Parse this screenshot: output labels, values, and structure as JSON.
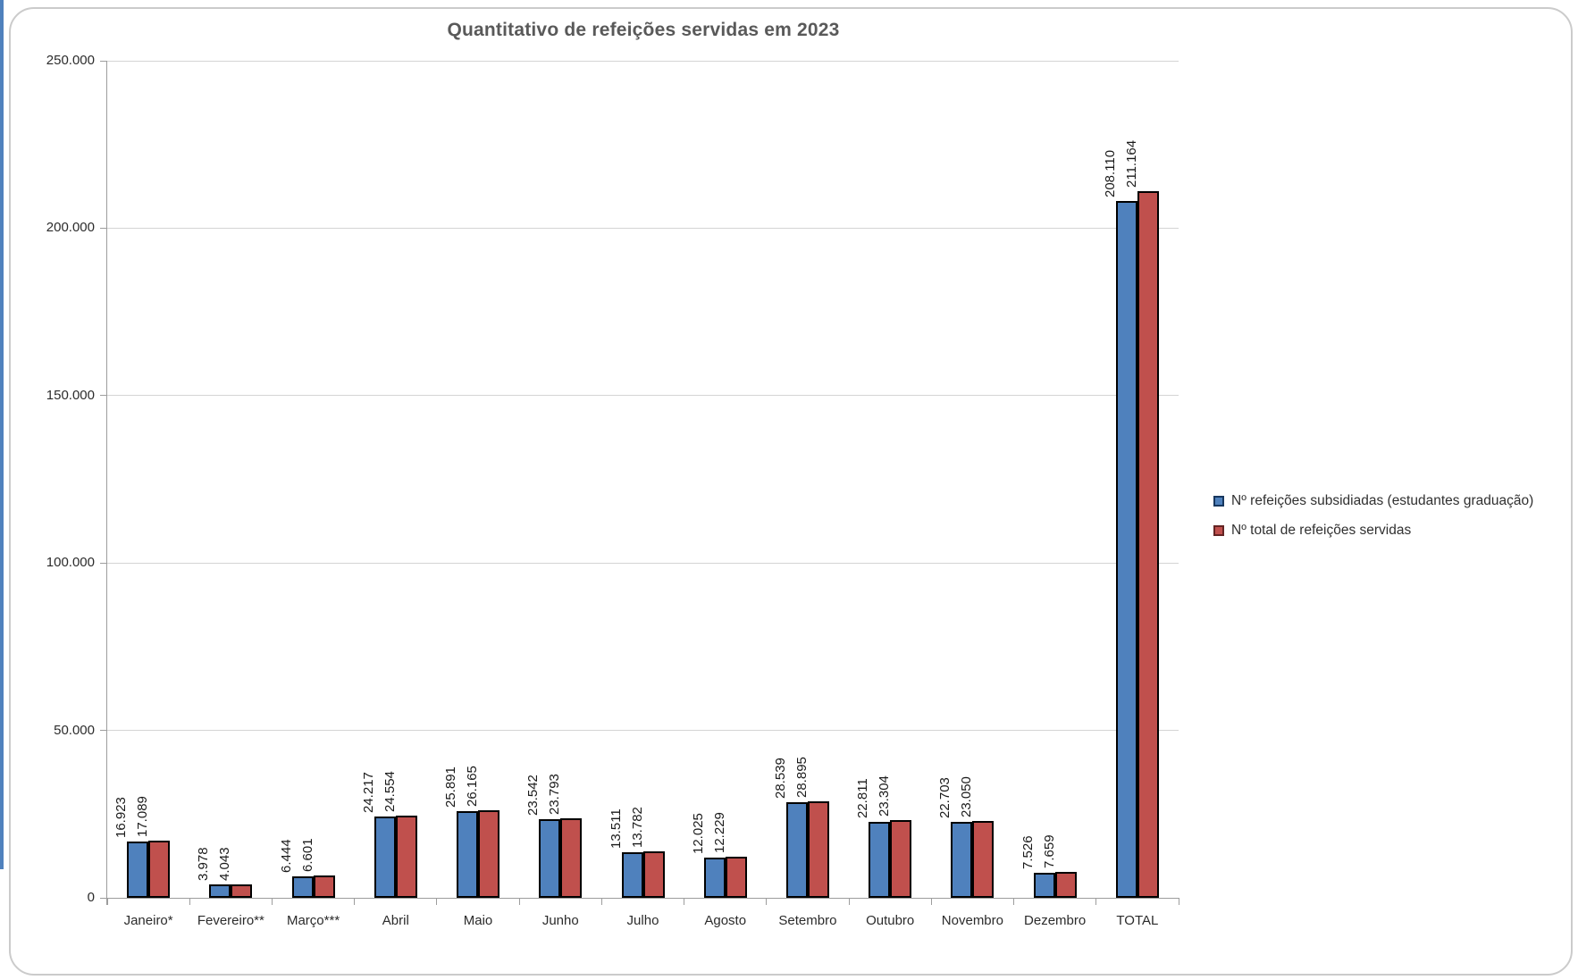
{
  "chart_data": {
    "type": "bar",
    "title": "Quantitativo de refeições servidas em 2023",
    "categories": [
      "Janeiro*",
      "Fevereiro**",
      "Março***",
      "Abril",
      "Maio",
      "Junho",
      "Julho",
      "Agosto",
      "Setembro",
      "Outubro",
      "Novembro",
      "Dezembro",
      "TOTAL"
    ],
    "series": [
      {
        "name": "Nº refeições subsidiadas (estudantes graduação)",
        "color": "#4F81BD",
        "marker_border": "#17375E",
        "values": [
          16923,
          3978,
          6444,
          24217,
          25891,
          23542,
          13511,
          12025,
          28539,
          22811,
          22703,
          7526,
          208110
        ]
      },
      {
        "name": "Nº total de refeições servidas",
        "color": "#C0504D",
        "marker_border": "#632423",
        "values": [
          17089,
          4043,
          6601,
          24554,
          26165,
          23793,
          13782,
          12229,
          28895,
          23304,
          23050,
          7659,
          211164
        ]
      }
    ],
    "ylim": [
      0,
      250000
    ],
    "yticks": [
      0,
      50000,
      100000,
      150000,
      200000,
      250000
    ],
    "ytick_labels": [
      "0",
      "50.000",
      "100.000",
      "150.000",
      "200.000",
      "250.000"
    ],
    "grid": "horizontal",
    "legend_position": "right",
    "bar_border_color": "#000000",
    "value_labels": "rotated 90° above bars, thousands separated by dot",
    "number_format": "thousands-dot"
  },
  "frame": {
    "border_color": "#CBCBCB",
    "title_color": "#595959",
    "gridline_color": "#D4D4D4",
    "axis_color": "#9D9D9D"
  }
}
